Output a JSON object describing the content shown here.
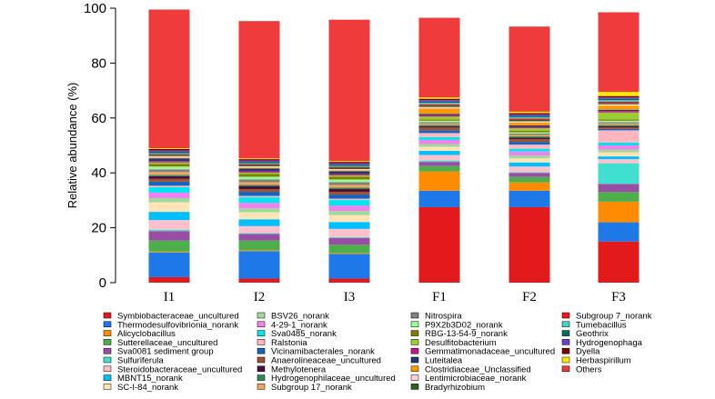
{
  "chart_data": {
    "type": "bar",
    "stacked": true,
    "ylabel": "Relative abundance (%)",
    "ylim": [
      0,
      100
    ],
    "yticks": [
      "0",
      "20",
      "40",
      "60",
      "80",
      "100"
    ],
    "categories": [
      "I1",
      "I2",
      "I3",
      "F1",
      "F2",
      "F3"
    ],
    "legend_position": "bottom",
    "series": [
      {
        "name": "Symbiobacteraceae_uncultured",
        "color": "#e31a1c",
        "values": [
          2,
          1.5,
          1.5,
          27.5,
          27.5,
          15
        ]
      },
      {
        "name": "Thermodesulfovibrionia_norank",
        "color": "#1f78e8",
        "values": [
          9,
          10,
          9,
          6,
          6,
          7
        ]
      },
      {
        "name": "Alicyclobacillus",
        "color": "#ff8c00",
        "values": [
          0.3,
          0.3,
          0.3,
          7,
          3,
          7.5
        ]
      },
      {
        "name": "Sutterellaceae_uncultured",
        "color": "#4daf4a",
        "values": [
          4,
          3.5,
          3,
          2,
          2,
          3.5
        ]
      },
      {
        "name": "Sva0081 sediment group",
        "color": "#984ea3",
        "values": [
          3.5,
          2.5,
          2.5,
          1.5,
          1.5,
          3
        ]
      },
      {
        "name": "Sulfuriferula",
        "color": "#40e0d0",
        "values": [
          0.5,
          0.3,
          0.3,
          0.5,
          0.3,
          7.5
        ]
      },
      {
        "name": "Steroidobacteraceae_uncultured",
        "color": "#ffc0cb",
        "values": [
          3.5,
          2.5,
          3,
          2,
          2,
          1.5
        ]
      },
      {
        "name": "MBNT15_norank",
        "color": "#00bfff",
        "values": [
          3,
          2.5,
          2.5,
          1.5,
          1.5,
          1
        ]
      },
      {
        "name": "SC-I-84_norank",
        "color": "#ffe4b5",
        "values": [
          3.5,
          2.5,
          2.5,
          1.5,
          1.5,
          1.5
        ]
      },
      {
        "name": "BSV26_norank",
        "color": "#a1d99b",
        "values": [
          1.5,
          1.5,
          1.5,
          1,
          1,
          1
        ]
      },
      {
        "name": "4-29-1_norank",
        "color": "#ee82ee",
        "values": [
          2,
          2,
          2,
          1.5,
          1.5,
          1.5
        ]
      },
      {
        "name": "Sva0485_norank",
        "color": "#00e5ee",
        "values": [
          2,
          2,
          2,
          1,
          1,
          1
        ]
      },
      {
        "name": "Ralstonia",
        "color": "#ffb6c1",
        "values": [
          0.5,
          0.5,
          0.5,
          1.5,
          1.5,
          4.5
        ]
      },
      {
        "name": "Vicinamibacterales_norank",
        "color": "#1565c0",
        "values": [
          1.5,
          1.5,
          1.5,
          1,
          1,
          0.5
        ]
      },
      {
        "name": "Anaerolineaceae_uncultured",
        "color": "#a0522d",
        "values": [
          1,
          1,
          1,
          1,
          1,
          0.5
        ]
      },
      {
        "name": "Methylotenera",
        "color": "#4a1040",
        "values": [
          1,
          1,
          1,
          0.5,
          0.5,
          0.5
        ]
      },
      {
        "name": "Hydrogenophilaceae_uncultured",
        "color": "#2e8b57",
        "values": [
          0.5,
          0.5,
          0.5,
          0.5,
          0.5,
          0.5
        ]
      },
      {
        "name": "Subgroup 17_norank",
        "color": "#f4a460",
        "values": [
          1,
          1,
          1,
          0.5,
          0.5,
          0.5
        ]
      },
      {
        "name": "Nitrospira",
        "color": "#808080",
        "values": [
          1,
          1,
          1,
          0.5,
          0.5,
          0.5
        ]
      },
      {
        "name": "P9X2b3D02_norank",
        "color": "#98fb98",
        "values": [
          1,
          1,
          1,
          0.5,
          0.5,
          0.5
        ]
      },
      {
        "name": "RBG-13-54-9_norank",
        "color": "#808000",
        "values": [
          1,
          1,
          1,
          0.5,
          0.5,
          0.5
        ]
      },
      {
        "name": "Desulfitobacterium",
        "color": "#9acd32",
        "values": [
          0.5,
          0.5,
          0.5,
          1,
          1,
          2.5
        ]
      },
      {
        "name": "Gemmatimonadaceae_uncultured",
        "color": "#c71585",
        "values": [
          0.5,
          0.5,
          0.5,
          0.5,
          0.5,
          0.5
        ]
      },
      {
        "name": "Luteitalea",
        "color": "#1f3b73",
        "values": [
          1,
          1,
          1,
          0.5,
          0.5,
          0.5
        ]
      },
      {
        "name": "Clostridiaceae_Unclassified",
        "color": "#ff9900",
        "values": [
          0.3,
          0.3,
          0.3,
          2,
          1,
          1.5
        ]
      },
      {
        "name": "Lentimicrobiaceae_norank",
        "color": "#ffd1dc",
        "values": [
          0.5,
          0.5,
          0.5,
          0.5,
          0.5,
          0.5
        ]
      },
      {
        "name": "Bradyrhizobium",
        "color": "#2f5f1f",
        "values": [
          0.5,
          0.5,
          0.5,
          0.5,
          0.5,
          0.5
        ]
      },
      {
        "name": "Subgroup 7_norank",
        "color": "#e41a1c",
        "values": [
          0.3,
          0.3,
          0.3,
          0.5,
          0.5,
          0.5
        ]
      },
      {
        "name": "Tumebacillus",
        "color": "#48d1cc",
        "values": [
          0.3,
          0.3,
          0.3,
          0.5,
          0.5,
          0.5
        ]
      },
      {
        "name": "Geothrix",
        "color": "#006d5b",
        "values": [
          0.5,
          0.5,
          0.5,
          0.5,
          0.5,
          0.5
        ]
      },
      {
        "name": "Hydrogenophaga",
        "color": "#6a3fd6",
        "values": [
          0.5,
          0.5,
          0.5,
          0.5,
          0.5,
          0.5
        ]
      },
      {
        "name": "Dyella",
        "color": "#800000",
        "values": [
          0.5,
          0.5,
          0.5,
          0.5,
          0.5,
          0.5
        ]
      },
      {
        "name": "Herbaspirillum",
        "color": "#ffea00",
        "values": [
          0.3,
          0.3,
          0.3,
          0.5,
          0.5,
          1.5
        ]
      },
      {
        "name": "Others",
        "color": "#ef3b3b",
        "values": [
          50.5,
          50,
          51.5,
          29,
          31,
          29
        ]
      }
    ]
  }
}
